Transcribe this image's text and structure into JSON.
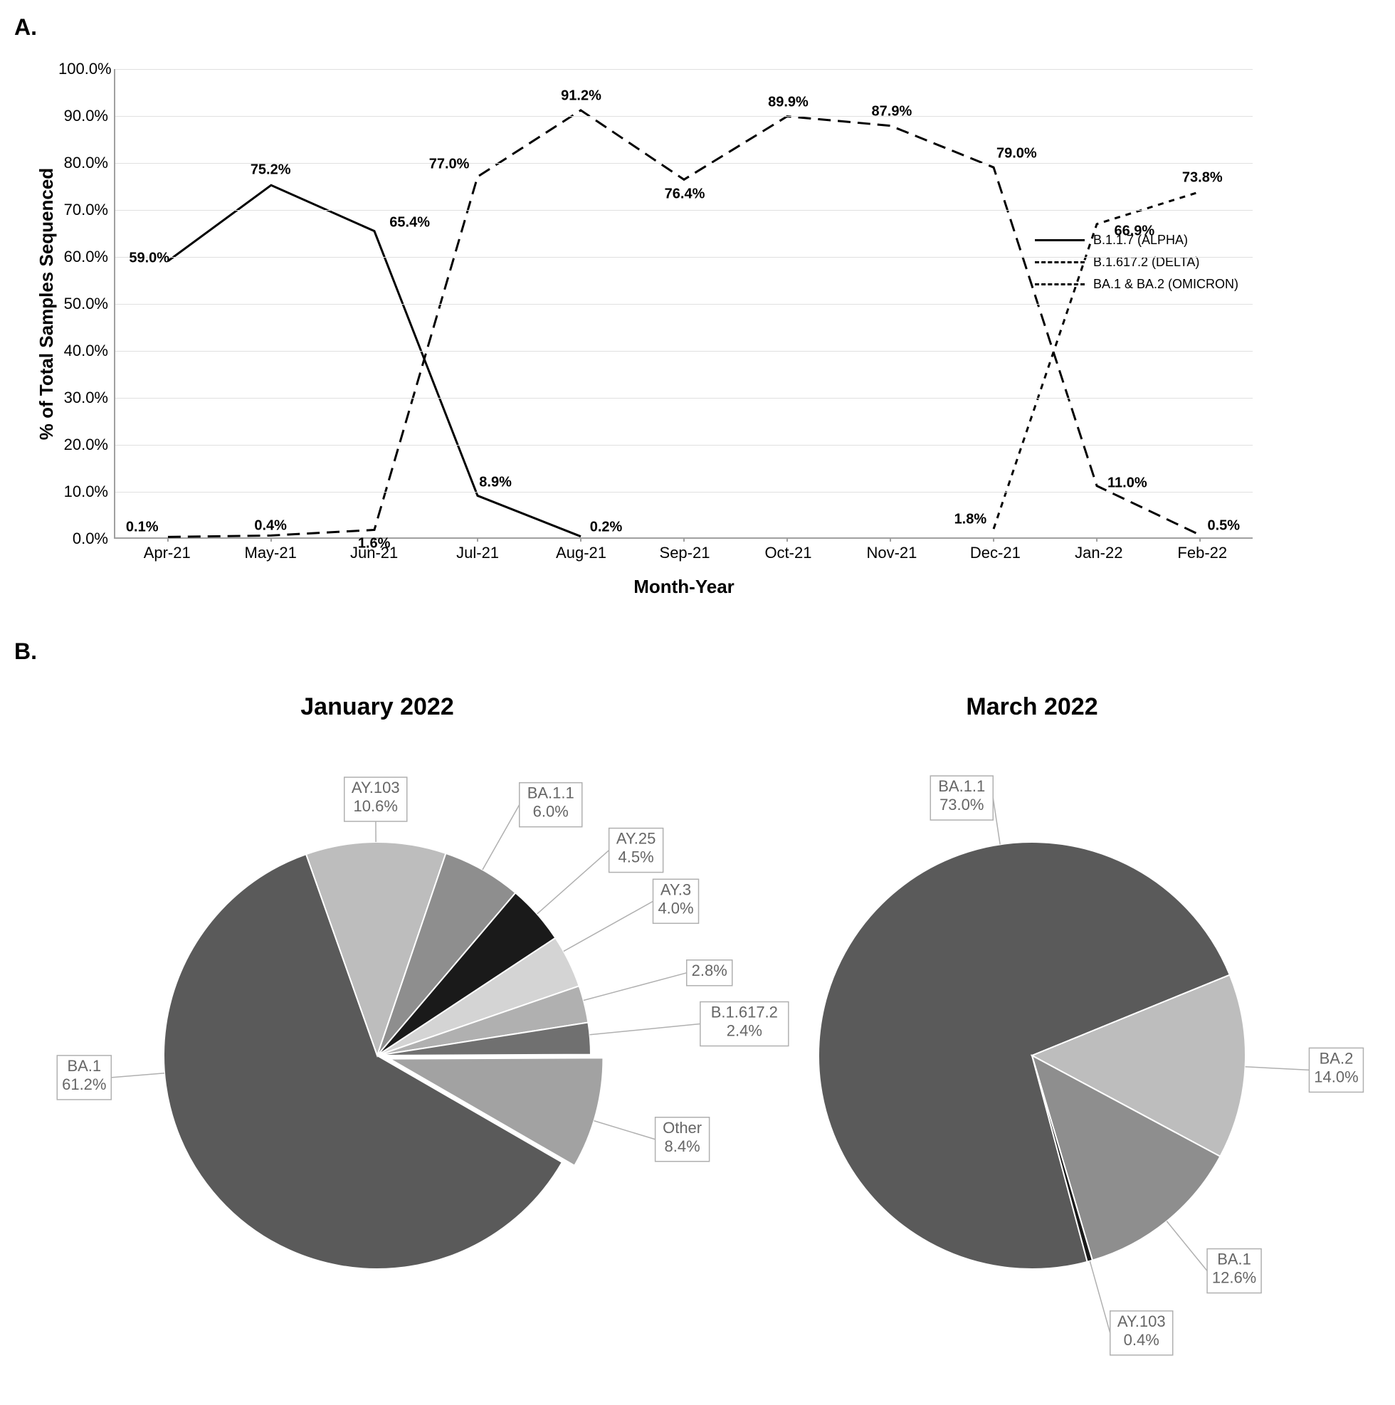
{
  "panelA": {
    "label": "A.",
    "type": "line",
    "yaxis_label": "% of Total Samples Sequenced",
    "xaxis_label": "Month-Year",
    "ylim": [
      0,
      100
    ],
    "ytick_step": 10,
    "ytick_suffix": "%",
    "categories": [
      "Apr-21",
      "May-21",
      "Jun-21",
      "Jul-21",
      "Aug-21",
      "Sep-21",
      "Oct-21",
      "Nov-21",
      "Dec-21",
      "Jan-22",
      "Feb-22"
    ],
    "grid_color": "#e0e0e0",
    "axis_color": "#a0a0a0",
    "label_fontsize": 22,
    "data_label_fontsize": 20,
    "line_width": 3,
    "series": [
      {
        "name": "B.1.1.7 (ALPHA)",
        "color": "#000000",
        "dash": "none",
        "points": [
          {
            "x": 0,
            "y": 59.0,
            "label": "59.0%",
            "ox": -25,
            "oy": -5
          },
          {
            "x": 1,
            "y": 75.2,
            "label": "75.2%",
            "ox": 0,
            "oy": -22
          },
          {
            "x": 2,
            "y": 65.4,
            "label": "65.4%",
            "ox": 50,
            "oy": -12
          },
          {
            "x": 3,
            "y": 8.9,
            "label": "8.9%",
            "ox": 25,
            "oy": -20
          },
          {
            "x": 4,
            "y": 0.2,
            "label": "0.2%",
            "ox": 35,
            "oy": -15
          }
        ]
      },
      {
        "name": "B.1.617.2 (DELTA)",
        "color": "#000000",
        "dash": "18 10",
        "points": [
          {
            "x": 0,
            "y": 0.1,
            "label": "0.1%",
            "ox": -35,
            "oy": -15
          },
          {
            "x": 1,
            "y": 0.4,
            "label": "0.4%",
            "ox": 0,
            "oy": -15
          },
          {
            "x": 2,
            "y": 1.6,
            "label": "1.6%",
            "ox": 0,
            "oy": 18
          },
          {
            "x": 3,
            "y": 77.0,
            "label": "77.0%",
            "ox": -40,
            "oy": -18
          },
          {
            "x": 4,
            "y": 91.2,
            "label": "91.2%",
            "ox": 0,
            "oy": -20
          },
          {
            "x": 5,
            "y": 76.4,
            "label": "76.4%",
            "ox": 0,
            "oy": 20
          },
          {
            "x": 6,
            "y": 89.9,
            "label": "89.9%",
            "ox": 0,
            "oy": -20
          },
          {
            "x": 7,
            "y": 87.9,
            "label": "87.9%",
            "ox": 0,
            "oy": -20
          },
          {
            "x": 8,
            "y": 79.0,
            "label": "79.0%",
            "ox": 30,
            "oy": -20
          },
          {
            "x": 9,
            "y": 11.0,
            "label": "11.0%",
            "ox": 40,
            "oy": -5
          },
          {
            "x": 10,
            "y": 0.5,
            "label": "0.5%",
            "ox": 30,
            "oy": -15
          }
        ]
      },
      {
        "name": "BA.1 & BA.2 (OMICRON)",
        "color": "#000000",
        "dash": "8 8",
        "points": [
          {
            "x": 8,
            "y": 1.8,
            "label": "1.8%",
            "ox": -35,
            "oy": -15
          },
          {
            "x": 9,
            "y": 66.9,
            "label": "66.9%",
            "ox": 50,
            "oy": 10
          },
          {
            "x": 10,
            "y": 73.8,
            "label": "73.8%",
            "ox": 0,
            "oy": -20
          }
        ]
      }
    ]
  },
  "panelB": {
    "label": "B.",
    "type": "pie",
    "title_fontsize": 34,
    "label_fontsize": 22,
    "slice_border": "#ffffff",
    "slice_border_width": 2,
    "label_box_fill": "#ffffff",
    "label_box_stroke": "#b0b0b0",
    "label_text_color": "#666666",
    "pies": [
      {
        "title": "January 2022",
        "radius": 300,
        "start_angle_deg": 30,
        "slices": [
          {
            "name": "BA.1",
            "value": 61.2,
            "color": "#5a5a5a",
            "label_r": 1.25,
            "label_ang_off": 35
          },
          {
            "name": "AY.103",
            "value": 10.6,
            "color": "#bdbdbd",
            "label_r": 1.2,
            "label_ang_off": 0
          },
          {
            "name": "BA.1.1",
            "value": 6.0,
            "color": "#8e8e8e",
            "label_r": 1.35,
            "label_ang_off": 0
          },
          {
            "name": "AY.25",
            "value": 4.5,
            "color": "#1a1a1a",
            "label_r": 1.45,
            "label_ang_off": 0
          },
          {
            "name": "AY.3",
            "value": 4.0,
            "color": "#d4d4d4",
            "label_r": 1.48,
            "label_ang_off": -3
          },
          {
            "name": "",
            "value": 2.8,
            "color": "#b0b0b0",
            "label_r": 1.5,
            "label_ang_off": -1,
            "label_text": "2.8%"
          },
          {
            "name": "B.1.617.2",
            "value": 2.4,
            "color": "#707070",
            "label_r": 1.52,
            "label_ang_off": -1
          },
          {
            "name": "Other",
            "value": 8.4,
            "color": "#a2a2a2",
            "label_r": 1.3,
            "label_ang_off": 2,
            "pull": 0.06
          }
        ]
      },
      {
        "title": "March 2022",
        "radius": 300,
        "start_angle_deg": 75,
        "slices": [
          {
            "name": "BA.1.1",
            "value": 73.0,
            "color": "#5a5a5a",
            "label_r": 1.22,
            "label_ang_off": 55
          },
          {
            "name": "BA.2",
            "value": 14.0,
            "color": "#bdbdbd",
            "label_r": 1.3,
            "label_ang_off": 0
          },
          {
            "name": "BA.1",
            "value": 12.6,
            "color": "#8e8e8e",
            "label_r": 1.3,
            "label_ang_off": 0
          },
          {
            "name": "AY.103",
            "value": 0.4,
            "color": "#1a1a1a",
            "label_r": 1.35,
            "label_ang_off": 0
          }
        ]
      }
    ]
  }
}
